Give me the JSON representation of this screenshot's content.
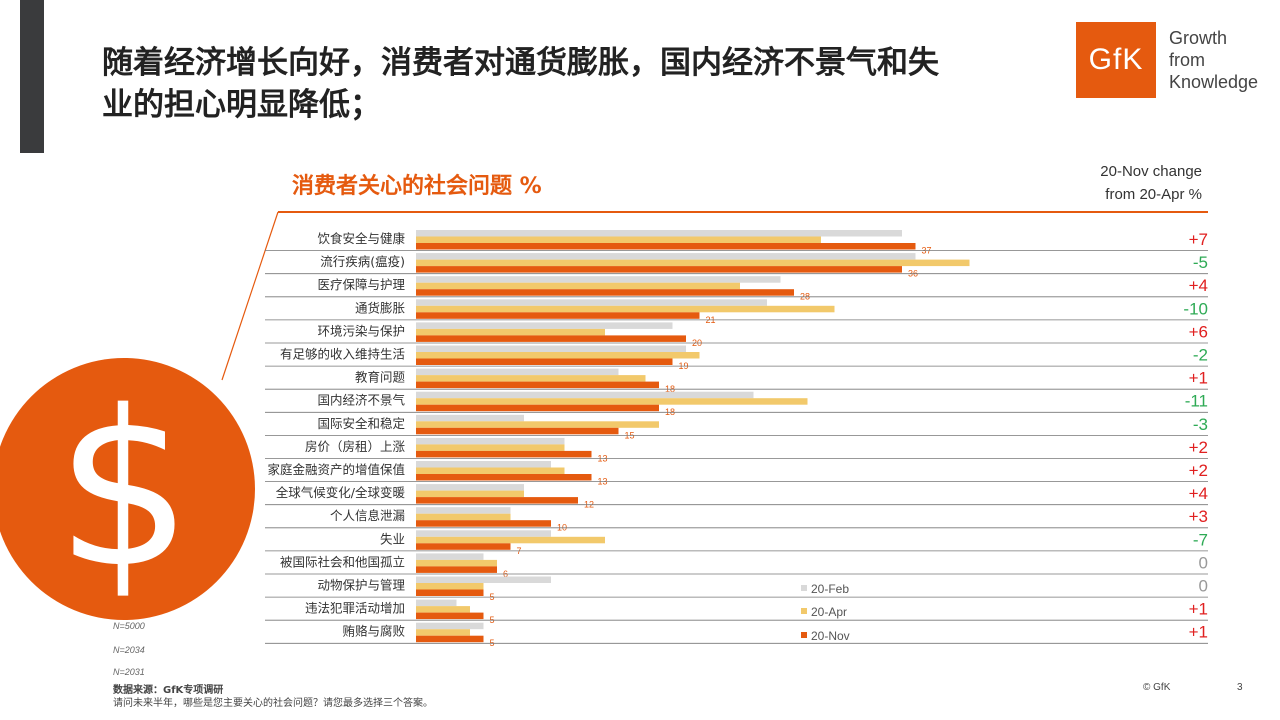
{
  "title": "随着经济增长向好，消费者对通货膨胀，国内经济不景气和失业的担心明显降低；",
  "logo": {
    "mark": "GfK",
    "tagline": [
      "Growth",
      "from",
      "Knowledge"
    ]
  },
  "dollar_symbol": "$",
  "change_header": [
    "20-Nov change",
    "from 20-Apr %"
  ],
  "sample_sizes": [
    "N=5000",
    "N=2034",
    "N=2031"
  ],
  "source": {
    "line1": "数据来源：GfK专项调研",
    "line2": "请问未来半年，哪些是您主要关心的社会问题？请您最多选择三个答案。"
  },
  "copyright": "© GfK",
  "page_number": "3",
  "colors": {
    "feb": "#d9d9d9",
    "apr": "#f2c96b",
    "nov": "#e55a0f",
    "positive": "#e02020",
    "negative": "#2eaa55",
    "zero": "#999999"
  },
  "chart_data": {
    "type": "bar",
    "orientation": "horizontal",
    "title": "消费者关心的社会问题 %",
    "categories": [
      "饮食安全与健康",
      "流行疾病(瘟疫)",
      "医疗保障与护理",
      "通货膨胀",
      "环境污染与保护",
      "有足够的收入维持生活",
      "教育问题",
      "国内经济不景气",
      "国际安全和稳定",
      "房价（房租）上涨",
      "家庭金融资产的增值保值",
      "全球气候变化/全球变暖",
      "个人信息泄漏",
      "失业",
      "被国际社会和他国孤立",
      "动物保护与管理",
      "违法犯罪活动增加",
      "贿赂与腐败"
    ],
    "series": [
      {
        "name": "20-Feb",
        "values": [
          36,
          37,
          27,
          26,
          19,
          20,
          15,
          25,
          8,
          11,
          10,
          8,
          7,
          10,
          5,
          10,
          3,
          5
        ]
      },
      {
        "name": "20-Apr",
        "values": [
          30,
          41,
          24,
          31,
          14,
          21,
          17,
          29,
          18,
          11,
          11,
          8,
          7,
          14,
          6,
          5,
          4,
          4
        ]
      },
      {
        "name": "20-Nov",
        "values": [
          37,
          36,
          28,
          21,
          20,
          19,
          18,
          18,
          15,
          13,
          13,
          12,
          10,
          7,
          6,
          5,
          5,
          5
        ]
      }
    ],
    "change": [
      "+7",
      "-5",
      "+4",
      "-10",
      "+6",
      "-2",
      "+1",
      "-11",
      "-3",
      "+2",
      "+2",
      "+4",
      "+3",
      "-7",
      "0",
      "0",
      "+1",
      "+1"
    ],
    "xlim": [
      0,
      40
    ],
    "legend": [
      "20-Feb",
      "20-Apr",
      "20-Nov"
    ],
    "legend_position": "bottom-right"
  }
}
